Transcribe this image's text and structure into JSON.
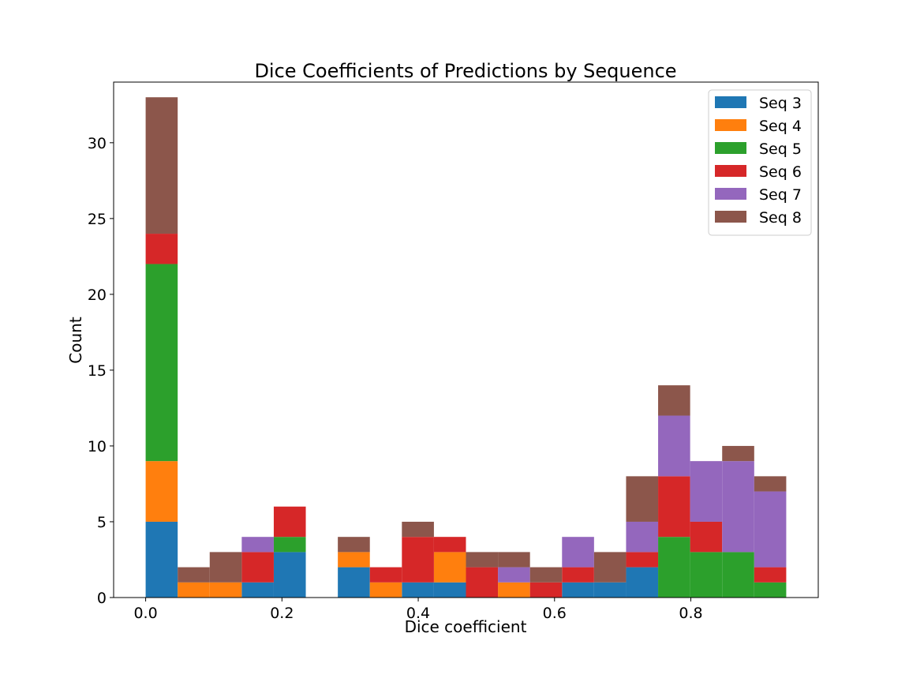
{
  "chart_data": {
    "type": "bar",
    "stacked": true,
    "title": "Dice Coefficients of Predictions by Sequence",
    "xlabel": "Dice coefficient",
    "ylabel": "Count",
    "xlim": [
      -0.047,
      0.987
    ],
    "ylim": [
      0,
      34
    ],
    "x_ticks": [
      0.0,
      0.2,
      0.4,
      0.6,
      0.8
    ],
    "x_tick_labels": [
      "0.0",
      "0.2",
      "0.4",
      "0.6",
      "0.8"
    ],
    "y_ticks": [
      0,
      5,
      10,
      15,
      20,
      25,
      30
    ],
    "y_tick_labels": [
      "0",
      "5",
      "10",
      "15",
      "20",
      "25",
      "30"
    ],
    "bin_width": 0.047,
    "bins": [
      0.0,
      0.047,
      0.094,
      0.141,
      0.188,
      0.235,
      0.282,
      0.329,
      0.376,
      0.423,
      0.47,
      0.517,
      0.564,
      0.611,
      0.658,
      0.705,
      0.752,
      0.799,
      0.846,
      0.893
    ],
    "series": [
      {
        "name": "Seq 3",
        "color": "#1f77b4",
        "values": [
          5,
          0,
          0,
          1,
          3,
          0,
          2,
          0,
          1,
          1,
          0,
          0,
          0,
          1,
          1,
          2,
          0,
          0,
          0,
          0
        ]
      },
      {
        "name": "Seq 4",
        "color": "#ff7f0e",
        "values": [
          4,
          1,
          1,
          0,
          0,
          0,
          1,
          1,
          0,
          2,
          0,
          1,
          0,
          0,
          0,
          0,
          0,
          0,
          0,
          0
        ]
      },
      {
        "name": "Seq 5",
        "color": "#2ca02c",
        "values": [
          13,
          0,
          0,
          0,
          1,
          0,
          0,
          0,
          0,
          0,
          0,
          0,
          0,
          0,
          0,
          0,
          4,
          3,
          3,
          1
        ]
      },
      {
        "name": "Seq 6",
        "color": "#d62728",
        "values": [
          2,
          0,
          0,
          2,
          2,
          0,
          0,
          1,
          3,
          1,
          2,
          0,
          1,
          1,
          0,
          1,
          4,
          2,
          0,
          1
        ]
      },
      {
        "name": "Seq 7",
        "color": "#9467bd",
        "values": [
          0,
          0,
          0,
          1,
          0,
          0,
          0,
          0,
          0,
          0,
          0,
          1,
          0,
          2,
          0,
          2,
          4,
          4,
          6,
          5
        ]
      },
      {
        "name": "Seq 8",
        "color": "#8c564b",
        "values": [
          9,
          1,
          2,
          0,
          0,
          0,
          1,
          0,
          1,
          0,
          1,
          1,
          1,
          0,
          2,
          3,
          2,
          0,
          1,
          1
        ]
      }
    ],
    "legend_position": "top-right",
    "grid": false
  }
}
